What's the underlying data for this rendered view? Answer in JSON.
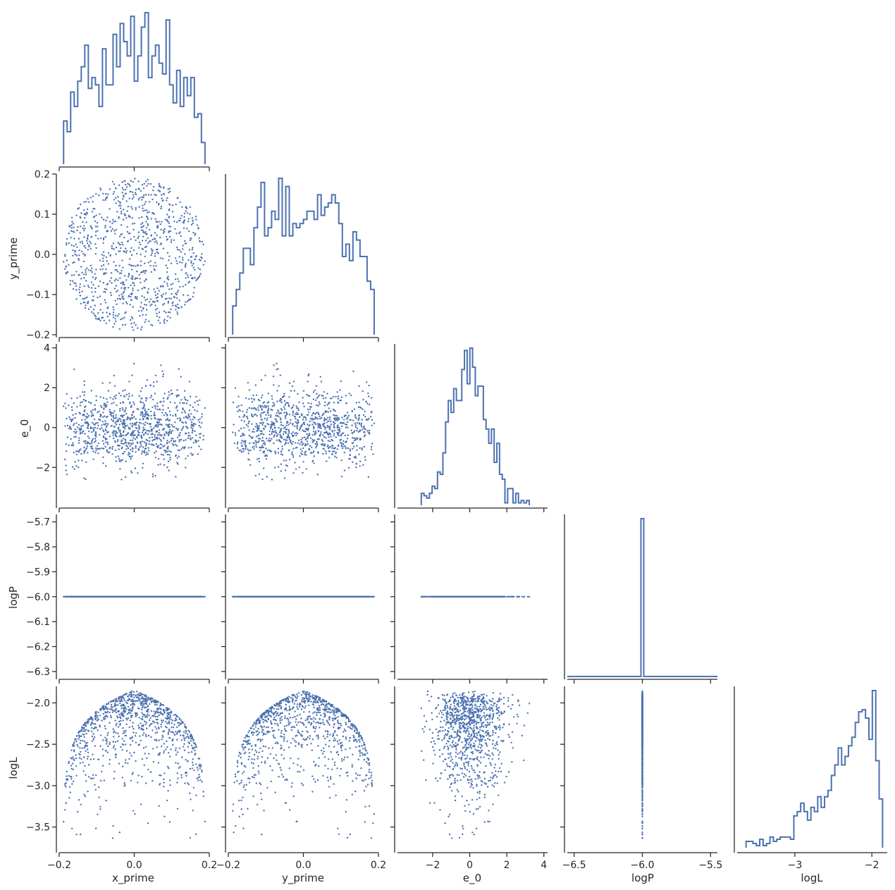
{
  "chart_data": {
    "type": "scatter",
    "kind": "corner-plot",
    "variables": [
      "x_prime",
      "y_prime",
      "e_0",
      "logP",
      "logL"
    ],
    "color": "#4c72b0",
    "histogram_style": "step",
    "n_samples": 1000,
    "axes": {
      "x_prime": {
        "lim": [
          -0.2,
          0.2
        ],
        "ticks": [
          -0.2,
          0,
          0.2
        ],
        "tick_labels": [
          "−0.2",
          "0.0",
          "0.2"
        ]
      },
      "y_prime": {
        "lim": [
          -0.2,
          0.2
        ],
        "ticks": [
          -0.2,
          -0.1,
          0,
          0.1,
          0.2
        ],
        "tick_labels": [
          "−0.2",
          "−0.1",
          "0.0",
          "0.1",
          "0.2"
        ],
        "x_tick_labels": [
          "−0.2",
          "0.0",
          "0.2"
        ]
      },
      "e_0": {
        "lim": [
          -3.9,
          4.2
        ],
        "ticks": [
          -2,
          0,
          2,
          4
        ],
        "tick_labels": [
          "−2",
          "0",
          "2",
          "4"
        ],
        "y_ticks": [
          -2,
          0,
          2,
          4
        ],
        "y_tick_labels": [
          "−2",
          "0",
          "2",
          "4"
        ],
        "x_tick_labels": [
          "−2",
          "0",
          "2",
          "4"
        ]
      },
      "logP": {
        "lim": [
          -6.32,
          -5.67
        ],
        "ticks": [
          -6.3,
          -6.2,
          -6.1,
          -6.0,
          -5.9,
          -5.8,
          -5.7
        ],
        "tick_labels": [
          "−6.3",
          "−6.2",
          "−6.1",
          "−6.0",
          "−5.9",
          "−5.8",
          "−5.7"
        ],
        "x_lim": [
          -6.55,
          -5.45
        ],
        "x_ticks": [
          -6.5,
          -6.0,
          -5.5
        ],
        "x_tick_labels": [
          "−6.5",
          "−6.0",
          "−5.5"
        ]
      },
      "logL": {
        "lim": [
          -3.75,
          -1.8
        ],
        "ticks": [
          -3.5,
          -3.0,
          -2.5,
          -2.0
        ],
        "tick_labels": [
          "−3.5",
          "−3.0",
          "−2.5",
          "−2.0"
        ],
        "x_ticks": [
          -3,
          -2
        ],
        "x_tick_labels": [
          "−3",
          "−2"
        ]
      }
    },
    "relations": {
      "x_prime_y_prime": "uniform disk, radius 0.19",
      "logP": "constant −6.0",
      "logL": "≈ log of (1 − r/0.19), peaking near −1.85 at r = 0, down to ≈ −3.65 at the edge",
      "e_0": "standard normal, independent"
    },
    "xlabels": [
      "x_prime",
      "y_prime",
      "e_0",
      "logP",
      "logL"
    ],
    "ylabels": [
      "",
      "y_prime",
      "e_0",
      "logP",
      "logL"
    ]
  }
}
